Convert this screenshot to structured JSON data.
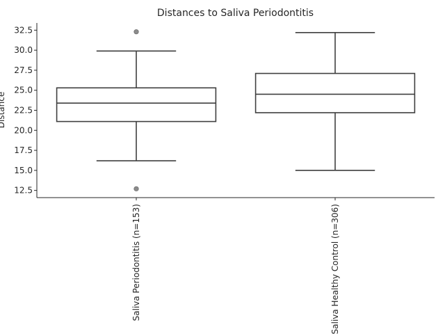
{
  "chart_data": {
    "type": "box",
    "title": "Distances to Saliva Periodontitis",
    "xlabel": "",
    "ylabel": "Distance",
    "ylim": [
      11.6,
      33.4
    ],
    "yticks": [
      12.5,
      15.0,
      17.5,
      20.0,
      22.5,
      25.0,
      27.5,
      30.0,
      32.5
    ],
    "ytick_labels": [
      "12.5",
      "15.0",
      "17.5",
      "20.0",
      "22.5",
      "25.0",
      "27.5",
      "30.0",
      "32.5"
    ],
    "grid": false,
    "categories": [
      "Saliva Periodontitis (n=153)",
      "Saliva Healthy Control (n=306)"
    ],
    "boxes": [
      {
        "whisker_low": 16.2,
        "q1": 21.1,
        "median": 23.4,
        "q3": 25.3,
        "whisker_high": 29.9,
        "outliers": [
          32.3,
          12.7
        ]
      },
      {
        "whisker_low": 15.0,
        "q1": 22.2,
        "median": 24.5,
        "q3": 27.1,
        "whisker_high": 32.2,
        "outliers": []
      }
    ]
  },
  "colors": {
    "box_edge": "#3f3f3f",
    "box_fill": "#ffffff",
    "flier": "#8c8c8c",
    "axis": "#262626"
  }
}
